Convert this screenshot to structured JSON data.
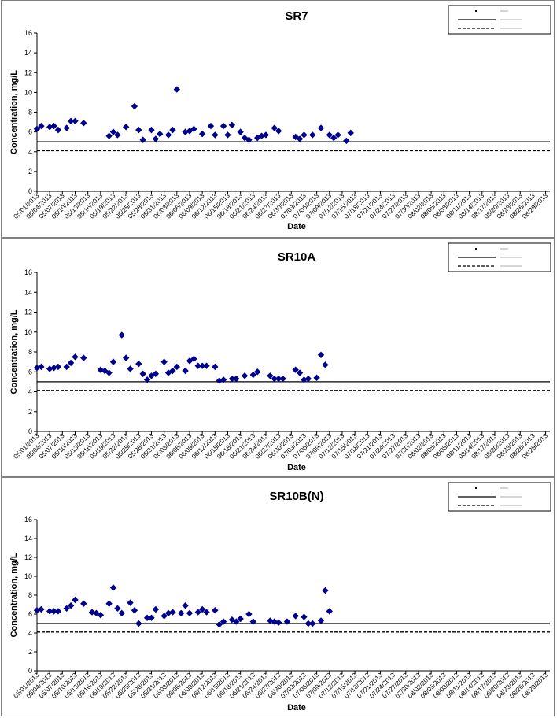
{
  "chart_data": [
    {
      "type": "scatter",
      "title": "SR7",
      "xlabel": "Date",
      "ylabel": "Concentration, mg/L",
      "ylim": [
        0,
        16
      ],
      "yticks": [
        0,
        2,
        4,
        6,
        8,
        10,
        12,
        14,
        16
      ],
      "xlim": [
        "05/01/2013",
        "08/30/2013"
      ],
      "xticks": [
        "05/01/2013",
        "05/04/2013",
        "05/07/2013",
        "05/10/2013",
        "05/13/2013",
        "05/16/2013",
        "05/19/2013",
        "05/22/2013",
        "05/25/2013",
        "05/28/2013",
        "05/31/2013",
        "06/03/2013",
        "06/06/2013",
        "06/09/2013",
        "06/12/2013",
        "06/15/2013",
        "06/18/2013",
        "06/21/2013",
        "06/24/2013",
        "06/27/2013",
        "06/30/2013",
        "07/03/2013",
        "07/06/2013",
        "07/09/2013",
        "07/12/2013",
        "07/15/2013",
        "07/18/2013",
        "07/21/2013",
        "07/24/2013",
        "07/27/2013",
        "07/30/2013",
        "08/02/2013",
        "08/05/2013",
        "08/08/2013",
        "08/11/2013",
        "08/14/2013",
        "08/17/2013",
        "08/20/2013",
        "08/23/2013",
        "08/26/2013",
        "08/29/2013"
      ],
      "grid": false,
      "legend": "top-right",
      "series": [
        {
          "name": "SR7",
          "marker": "diamond",
          "color": "#00008b",
          "points": [
            [
              "05/01/2013",
              6.3
            ],
            [
              "05/02/2013",
              6.6
            ],
            [
              "05/04/2013",
              6.5
            ],
            [
              "05/05/2013",
              6.6
            ],
            [
              "05/06/2013",
              6.2
            ],
            [
              "05/08/2013",
              6.4
            ],
            [
              "05/09/2013",
              7.1
            ],
            [
              "05/10/2013",
              7.1
            ],
            [
              "05/12/2013",
              6.9
            ],
            [
              "05/18/2013",
              5.6
            ],
            [
              "05/19/2013",
              6.0
            ],
            [
              "05/20/2013",
              5.7
            ],
            [
              "05/22/2013",
              6.5
            ],
            [
              "05/24/2013",
              8.6
            ],
            [
              "05/25/2013",
              6.2
            ],
            [
              "05/26/2013",
              5.2
            ],
            [
              "05/28/2013",
              6.2
            ],
            [
              "05/29/2013",
              5.3
            ],
            [
              "05/30/2013",
              5.8
            ],
            [
              "06/01/2013",
              5.7
            ],
            [
              "06/02/2013",
              6.2
            ],
            [
              "06/03/2013",
              10.3
            ],
            [
              "06/05/2013",
              6.0
            ],
            [
              "06/06/2013",
              6.1
            ],
            [
              "06/07/2013",
              6.3
            ],
            [
              "06/09/2013",
              5.8
            ],
            [
              "06/11/2013",
              6.6
            ],
            [
              "06/12/2013",
              5.7
            ],
            [
              "06/14/2013",
              6.6
            ],
            [
              "06/15/2013",
              5.7
            ],
            [
              "06/16/2013",
              6.7
            ],
            [
              "06/18/2013",
              6.0
            ],
            [
              "06/19/2013",
              5.4
            ],
            [
              "06/20/2013",
              5.2
            ],
            [
              "06/22/2013",
              5.4
            ],
            [
              "06/23/2013",
              5.6
            ],
            [
              "06/24/2013",
              5.7
            ],
            [
              "06/26/2013",
              6.4
            ],
            [
              "06/27/2013",
              6.1
            ],
            [
              "07/01/2013",
              5.5
            ],
            [
              "07/02/2013",
              5.3
            ],
            [
              "07/03/2013",
              5.7
            ],
            [
              "07/05/2013",
              5.7
            ],
            [
              "07/07/2013",
              6.4
            ],
            [
              "07/09/2013",
              5.7
            ],
            [
              "07/10/2013",
              5.4
            ],
            [
              "07/11/2013",
              5.7
            ],
            [
              "07/13/2013",
              5.1
            ],
            [
              "07/14/2013",
              5.9
            ]
          ]
        }
      ],
      "reference_lines": [
        {
          "style": "solid",
          "value": 5.0
        },
        {
          "style": "dashed",
          "value": 4.1
        }
      ]
    },
    {
      "type": "scatter",
      "title": "SR10A",
      "xlabel": "Date",
      "ylabel": "Concentration, mg/L",
      "ylim": [
        0,
        16
      ],
      "yticks": [
        0,
        2,
        4,
        6,
        8,
        10,
        12,
        14,
        16
      ],
      "xlim": [
        "05/01/2013",
        "08/30/2013"
      ],
      "xticks": [
        "05/01/2013",
        "05/04/2013",
        "05/07/2013",
        "05/10/2013",
        "05/13/2013",
        "05/16/2013",
        "05/19/2013",
        "05/22/2013",
        "05/25/2013",
        "05/28/2013",
        "05/31/2013",
        "06/03/2013",
        "06/06/2013",
        "06/09/2013",
        "06/12/2013",
        "06/15/2013",
        "06/18/2013",
        "06/21/2013",
        "06/24/2013",
        "06/27/2013",
        "06/30/2013",
        "07/03/2013",
        "07/06/2013",
        "07/09/2013",
        "07/12/2013",
        "07/15/2013",
        "07/18/2013",
        "07/21/2013",
        "07/24/2013",
        "07/27/2013",
        "07/30/2013",
        "08/02/2013",
        "08/05/2013",
        "08/08/2013",
        "08/11/2013",
        "08/14/2013",
        "08/17/2013",
        "08/20/2013",
        "08/23/2013",
        "08/26/2013",
        "08/29/2013"
      ],
      "grid": false,
      "legend": "top-right",
      "series": [
        {
          "name": "SR10A",
          "marker": "diamond",
          "color": "#00008b",
          "points": [
            [
              "05/01/2013",
              6.4
            ],
            [
              "05/02/2013",
              6.5
            ],
            [
              "05/04/2013",
              6.3
            ],
            [
              "05/05/2013",
              6.4
            ],
            [
              "05/06/2013",
              6.5
            ],
            [
              "05/08/2013",
              6.5
            ],
            [
              "05/09/2013",
              6.9
            ],
            [
              "05/10/2013",
              7.5
            ],
            [
              "05/12/2013",
              7.4
            ],
            [
              "05/16/2013",
              6.2
            ],
            [
              "05/17/2013",
              6.1
            ],
            [
              "05/18/2013",
              5.9
            ],
            [
              "05/19/2013",
              7.0
            ],
            [
              "05/21/2013",
              9.7
            ],
            [
              "05/22/2013",
              7.4
            ],
            [
              "05/23/2013",
              6.3
            ],
            [
              "05/25/2013",
              6.8
            ],
            [
              "05/26/2013",
              5.8
            ],
            [
              "05/27/2013",
              5.2
            ],
            [
              "05/28/2013",
              5.6
            ],
            [
              "05/29/2013",
              5.8
            ],
            [
              "05/31/2013",
              7.0
            ],
            [
              "06/01/2013",
              5.9
            ],
            [
              "06/02/2013",
              6.1
            ],
            [
              "06/03/2013",
              6.5
            ],
            [
              "06/05/2013",
              6.1
            ],
            [
              "06/06/2013",
              7.1
            ],
            [
              "06/07/2013",
              7.3
            ],
            [
              "06/08/2013",
              6.6
            ],
            [
              "06/09/2013",
              6.6
            ],
            [
              "06/10/2013",
              6.6
            ],
            [
              "06/12/2013",
              6.5
            ],
            [
              "06/13/2013",
              5.1
            ],
            [
              "06/14/2013",
              5.2
            ],
            [
              "06/16/2013",
              5.3
            ],
            [
              "06/17/2013",
              5.3
            ],
            [
              "06/19/2013",
              5.6
            ],
            [
              "06/21/2013",
              5.7
            ],
            [
              "06/22/2013",
              6.0
            ],
            [
              "06/25/2013",
              5.6
            ],
            [
              "06/26/2013",
              5.3
            ],
            [
              "06/27/2013",
              5.3
            ],
            [
              "06/28/2013",
              5.3
            ],
            [
              "07/01/2013",
              6.2
            ],
            [
              "07/02/2013",
              5.9
            ],
            [
              "07/03/2013",
              5.2
            ],
            [
              "07/04/2013",
              5.3
            ],
            [
              "07/06/2013",
              5.4
            ],
            [
              "07/07/2013",
              7.7
            ],
            [
              "07/08/2013",
              6.7
            ]
          ]
        }
      ],
      "reference_lines": [
        {
          "style": "solid",
          "value": 5.0
        },
        {
          "style": "dashed",
          "value": 4.1
        }
      ]
    },
    {
      "type": "scatter",
      "title": "SR10B(N)",
      "xlabel": "Date",
      "ylabel": "Concentration, mg/L",
      "ylim": [
        0,
        16
      ],
      "yticks": [
        0,
        2,
        4,
        6,
        8,
        10,
        12,
        14,
        16
      ],
      "xlim": [
        "05/01/2013",
        "08/30/2013"
      ],
      "xticks": [
        "05/01/2013",
        "05/04/2013",
        "05/07/2013",
        "05/10/2013",
        "05/13/2013",
        "05/16/2013",
        "05/19/2013",
        "05/22/2013",
        "05/25/2013",
        "05/28/2013",
        "05/31/2013",
        "06/03/2013",
        "06/06/2013",
        "06/09/2013",
        "06/12/2013",
        "06/15/2013",
        "06/18/2013",
        "06/21/2013",
        "06/24/2013",
        "06/27/2013",
        "06/30/2013",
        "07/03/2013",
        "07/06/2013",
        "07/09/2013",
        "07/12/2013",
        "07/15/2013",
        "07/18/2013",
        "07/21/2013",
        "07/24/2013",
        "07/27/2013",
        "07/30/2013",
        "08/02/2013",
        "08/05/2013",
        "08/08/2013",
        "08/11/2013",
        "08/14/2013",
        "08/17/2013",
        "08/20/2013",
        "08/23/2013",
        "08/26/2013",
        "08/29/2013"
      ],
      "grid": false,
      "legend": "top-right",
      "series": [
        {
          "name": "SR10B(N)",
          "marker": "diamond",
          "color": "#00008b",
          "points": [
            [
              "05/01/2013",
              6.4
            ],
            [
              "05/02/2013",
              6.5
            ],
            [
              "05/04/2013",
              6.3
            ],
            [
              "05/05/2013",
              6.3
            ],
            [
              "05/06/2013",
              6.3
            ],
            [
              "05/08/2013",
              6.6
            ],
            [
              "05/09/2013",
              6.9
            ],
            [
              "05/10/2013",
              7.5
            ],
            [
              "05/12/2013",
              7.1
            ],
            [
              "05/14/2013",
              6.2
            ],
            [
              "05/15/2013",
              6.1
            ],
            [
              "05/16/2013",
              5.9
            ],
            [
              "05/18/2013",
              7.1
            ],
            [
              "05/19/2013",
              8.8
            ],
            [
              "05/20/2013",
              6.6
            ],
            [
              "05/21/2013",
              6.1
            ],
            [
              "05/23/2013",
              7.2
            ],
            [
              "05/24/2013",
              6.4
            ],
            [
              "05/25/2013",
              5.0
            ],
            [
              "05/27/2013",
              5.6
            ],
            [
              "05/28/2013",
              5.6
            ],
            [
              "05/29/2013",
              6.5
            ],
            [
              "05/31/2013",
              5.8
            ],
            [
              "06/01/2013",
              6.1
            ],
            [
              "06/02/2013",
              6.2
            ],
            [
              "06/04/2013",
              6.1
            ],
            [
              "06/05/2013",
              6.9
            ],
            [
              "06/06/2013",
              6.1
            ],
            [
              "06/08/2013",
              6.2
            ],
            [
              "06/09/2013",
              6.5
            ],
            [
              "06/10/2013",
              6.2
            ],
            [
              "06/12/2013",
              6.4
            ],
            [
              "06/13/2013",
              4.9
            ],
            [
              "06/14/2013",
              5.2
            ],
            [
              "06/16/2013",
              5.4
            ],
            [
              "06/17/2013",
              5.2
            ],
            [
              "06/18/2013",
              5.5
            ],
            [
              "06/20/2013",
              6.0
            ],
            [
              "06/21/2013",
              5.2
            ],
            [
              "06/25/2013",
              5.3
            ],
            [
              "06/26/2013",
              5.2
            ],
            [
              "06/27/2013",
              5.1
            ],
            [
              "06/29/2013",
              5.2
            ],
            [
              "07/01/2013",
              5.8
            ],
            [
              "07/03/2013",
              5.7
            ],
            [
              "07/04/2013",
              5.0
            ],
            [
              "07/05/2013",
              5.0
            ],
            [
              "07/07/2013",
              5.3
            ],
            [
              "07/08/2013",
              8.5
            ],
            [
              "07/09/2013",
              6.3
            ]
          ]
        }
      ],
      "reference_lines": [
        {
          "style": "solid",
          "value": 5.0
        },
        {
          "style": "dashed",
          "value": 4.1
        }
      ]
    }
  ]
}
